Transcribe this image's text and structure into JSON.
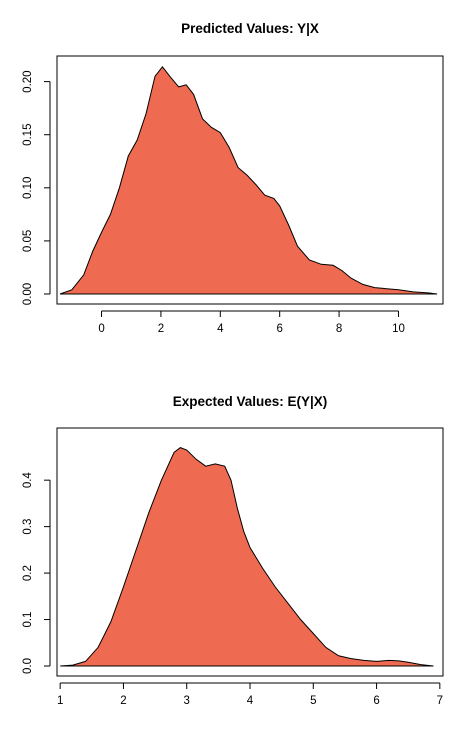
{
  "chart_data": [
    {
      "type": "area",
      "title": "Predicted Values: Y|X",
      "xlabel": "",
      "ylabel": "",
      "xlim": [
        -1.5,
        11.5
      ],
      "ylim": [
        0,
        0.21
      ],
      "xticks": [
        0,
        2,
        4,
        6,
        8,
        10
      ],
      "xtick_labels": [
        "0",
        "2",
        "4",
        "6",
        "8",
        "10"
      ],
      "yticks": [
        0,
        0.05,
        0.1,
        0.15,
        0.2
      ],
      "ytick_labels": [
        "0.00",
        "0.05",
        "0.10",
        "0.15",
        "0.20"
      ],
      "fill_color": "#EE6A50",
      "grid": false,
      "series": [
        {
          "x": [
            -1.4,
            -1.0,
            -0.6,
            -0.3,
            0.0,
            0.3,
            0.6,
            0.9,
            1.2,
            1.5,
            1.8,
            2.05,
            2.3,
            2.6,
            2.85,
            3.1,
            3.4,
            3.7,
            4.0,
            4.3,
            4.6,
            4.9,
            5.2,
            5.5,
            5.8,
            6.0,
            6.3,
            6.6,
            7.0,
            7.4,
            7.8,
            8.1,
            8.4,
            8.8,
            9.2,
            9.6,
            10.0,
            10.5,
            11.0,
            11.3
          ],
          "y": [
            0.0,
            0.004,
            0.018,
            0.04,
            0.058,
            0.075,
            0.1,
            0.13,
            0.145,
            0.17,
            0.205,
            0.214,
            0.205,
            0.195,
            0.197,
            0.188,
            0.165,
            0.157,
            0.152,
            0.138,
            0.119,
            0.112,
            0.103,
            0.093,
            0.09,
            0.083,
            0.065,
            0.045,
            0.032,
            0.028,
            0.027,
            0.022,
            0.015,
            0.009,
            0.006,
            0.005,
            0.004,
            0.002,
            0.001,
            0.0
          ]
        }
      ]
    },
    {
      "type": "area",
      "title": "Expected Values: E(Y|X)",
      "xlabel": "",
      "ylabel": "",
      "xlim": [
        0.95,
        7.05
      ],
      "ylim": [
        0,
        0.48
      ],
      "xticks": [
        1,
        2,
        3,
        4,
        5,
        6,
        7
      ],
      "xtick_labels": [
        "1",
        "2",
        "3",
        "4",
        "5",
        "6",
        "7"
      ],
      "yticks": [
        0,
        0.1,
        0.2,
        0.3,
        0.4
      ],
      "ytick_labels": [
        "0.0",
        "0.1",
        "0.2",
        "0.3",
        "0.4"
      ],
      "fill_color": "#EE6A50",
      "grid": false,
      "series": [
        {
          "x": [
            1.0,
            1.2,
            1.4,
            1.6,
            1.8,
            2.0,
            2.2,
            2.4,
            2.6,
            2.8,
            2.9,
            3.0,
            3.15,
            3.3,
            3.45,
            3.6,
            3.7,
            3.8,
            3.9,
            4.0,
            4.2,
            4.4,
            4.6,
            4.8,
            5.0,
            5.2,
            5.4,
            5.6,
            5.8,
            6.0,
            6.2,
            6.35,
            6.5,
            6.7,
            6.9
          ],
          "y": [
            0.0,
            0.002,
            0.01,
            0.04,
            0.095,
            0.17,
            0.25,
            0.33,
            0.4,
            0.46,
            0.47,
            0.465,
            0.445,
            0.43,
            0.435,
            0.43,
            0.4,
            0.34,
            0.29,
            0.255,
            0.21,
            0.17,
            0.135,
            0.1,
            0.07,
            0.04,
            0.022,
            0.016,
            0.012,
            0.01,
            0.012,
            0.011,
            0.008,
            0.003,
            0.0
          ]
        }
      ]
    }
  ]
}
